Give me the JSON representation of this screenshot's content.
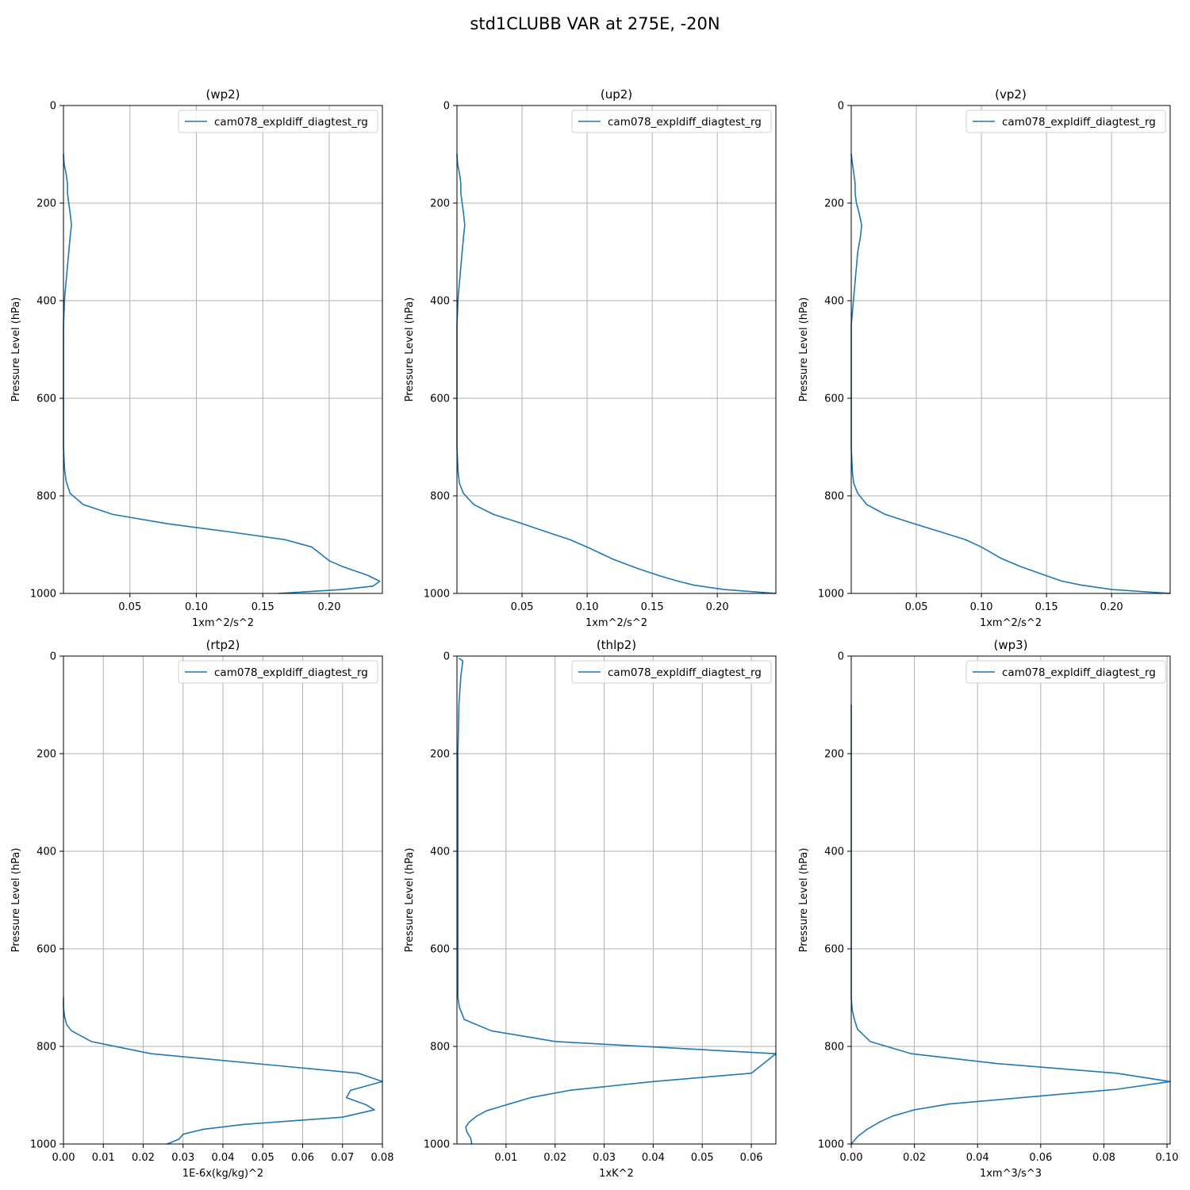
{
  "figure": {
    "title": "std1CLUBB VAR at 275E, -20N"
  },
  "colors": {
    "series": "#1f77b4",
    "grid": "#b0b0b0"
  },
  "chart_data": [
    {
      "type": "line",
      "title": "(wp2)",
      "xlabel": "1xm^2/s^2",
      "ylabel": "Pressure Level (hPa)",
      "xlim": [
        0,
        0.24
      ],
      "ylim": [
        1000,
        0
      ],
      "xticks": [
        "0.05",
        "0.10",
        "0.15",
        "0.20"
      ],
      "xtick_values": [
        0.05,
        0.1,
        0.15,
        0.2
      ],
      "yticks": [
        "0",
        "200",
        "400",
        "600",
        "800",
        "1000"
      ],
      "ytick_values": [
        0,
        200,
        400,
        600,
        800,
        1000
      ],
      "grid": true,
      "legend_position": "top-right",
      "series": [
        {
          "name": "cam078_expldiff_diagtest_rg",
          "x": [
            0.0,
            0.0005,
            0.002,
            0.003,
            0.003,
            0.004,
            0.005,
            0.006,
            0.005,
            0.004,
            0.003,
            0.002,
            0.001,
            0.0005,
            0.0,
            0.0,
            0.0,
            0.0,
            0.0005,
            0.001,
            0.002,
            0.005,
            0.015,
            0.037,
            0.078,
            0.128,
            0.167,
            0.187,
            0.2,
            0.21,
            0.229,
            0.238,
            0.233,
            0.21,
            0.162
          ],
          "y": [
            100,
            120,
            140,
            160,
            180,
            200,
            220,
            245,
            270,
            300,
            330,
            360,
            390,
            420,
            450,
            550,
            650,
            700,
            730,
            750,
            770,
            795,
            818,
            838,
            857,
            875,
            890,
            905,
            933,
            945,
            963,
            975,
            985,
            992,
            1000
          ]
        }
      ]
    },
    {
      "type": "line",
      "title": "(up2)",
      "xlabel": "1xm^2/s^2",
      "ylabel": "Pressure Level (hPa)",
      "xlim": [
        0,
        0.245
      ],
      "ylim": [
        1000,
        0
      ],
      "xticks": [
        "0.05",
        "0.10",
        "0.15",
        "0.20"
      ],
      "xtick_values": [
        0.05,
        0.1,
        0.15,
        0.2
      ],
      "yticks": [
        "0",
        "200",
        "400",
        "600",
        "800",
        "1000"
      ],
      "ytick_values": [
        0,
        200,
        400,
        600,
        800,
        1000
      ],
      "grid": true,
      "legend_position": "top-right",
      "series": [
        {
          "name": "cam078_expldiff_diagtest_rg",
          "x": [
            0.0,
            0.0005,
            0.002,
            0.003,
            0.003,
            0.004,
            0.005,
            0.006,
            0.005,
            0.004,
            0.003,
            0.002,
            0.001,
            0.0005,
            0.0,
            0.0,
            0.0,
            0.0005,
            0.001,
            0.002,
            0.005,
            0.013,
            0.028,
            0.048,
            0.07,
            0.087,
            0.1,
            0.12,
            0.14,
            0.157,
            0.17,
            0.182,
            0.205,
            0.245
          ],
          "y": [
            100,
            120,
            140,
            160,
            180,
            200,
            220,
            245,
            270,
            300,
            330,
            360,
            390,
            420,
            450,
            600,
            700,
            730,
            755,
            775,
            795,
            818,
            838,
            855,
            875,
            890,
            905,
            930,
            950,
            965,
            975,
            983,
            992,
            1000
          ]
        }
      ]
    },
    {
      "type": "line",
      "title": "(vp2)",
      "xlabel": "1xm^2/s^2",
      "ylabel": "Pressure Level (hPa)",
      "xlim": [
        0,
        0.245
      ],
      "ylim": [
        1000,
        0
      ],
      "xticks": [
        "0.05",
        "0.10",
        "0.15",
        "0.20"
      ],
      "xtick_values": [
        0.05,
        0.1,
        0.15,
        0.2
      ],
      "yticks": [
        "0",
        "200",
        "400",
        "600",
        "800",
        "1000"
      ],
      "ytick_values": [
        0,
        200,
        400,
        600,
        800,
        1000
      ],
      "grid": true,
      "legend_position": "top-right",
      "series": [
        {
          "name": "cam078_expldiff_diagtest_rg",
          "x": [
            0.0,
            0.001,
            0.002,
            0.003,
            0.003,
            0.004,
            0.006,
            0.008,
            0.007,
            0.005,
            0.004,
            0.003,
            0.002,
            0.001,
            0.0,
            0.0,
            0.0,
            0.0005,
            0.001,
            0.002,
            0.005,
            0.012,
            0.026,
            0.048,
            0.07,
            0.088,
            0.1,
            0.115,
            0.13,
            0.148,
            0.162,
            0.177,
            0.2,
            0.245
          ],
          "y": [
            100,
            120,
            140,
            160,
            180,
            200,
            220,
            245,
            270,
            300,
            330,
            360,
            390,
            420,
            450,
            600,
            700,
            730,
            755,
            775,
            795,
            818,
            838,
            857,
            875,
            890,
            905,
            928,
            945,
            962,
            975,
            983,
            992,
            1000
          ]
        }
      ]
    },
    {
      "type": "line",
      "title": "(rtp2)",
      "xlabel": "1E-6x(kg/kg)^2",
      "ylabel": "Pressure Level (hPa)",
      "xlim": [
        0,
        0.08
      ],
      "ylim": [
        1000,
        0
      ],
      "xticks": [
        "0.00",
        "0.01",
        "0.02",
        "0.03",
        "0.04",
        "0.05",
        "0.06",
        "0.07",
        "0.08"
      ],
      "xtick_values": [
        0.0,
        0.01,
        0.02,
        0.03,
        0.04,
        0.05,
        0.06,
        0.07,
        0.08
      ],
      "yticks": [
        "0",
        "200",
        "400",
        "600",
        "800",
        "1000"
      ],
      "ytick_values": [
        0,
        200,
        400,
        600,
        800,
        1000
      ],
      "grid": true,
      "legend_position": "top-right",
      "series": [
        {
          "name": "cam078_expldiff_diagtest_rg",
          "x": [
            0.0,
            0.0,
            0.0003,
            0.0008,
            0.002,
            0.007,
            0.022,
            0.074,
            0.08,
            0.072,
            0.071,
            0.076,
            0.078,
            0.07,
            0.045,
            0.035,
            0.03,
            0.029,
            0.026
          ],
          "y": [
            700,
            720,
            740,
            755,
            768,
            790,
            815,
            855,
            872,
            890,
            905,
            920,
            930,
            945,
            960,
            970,
            980,
            990,
            1000
          ]
        }
      ]
    },
    {
      "type": "line",
      "title": "(thlp2)",
      "xlabel": "1xK^2",
      "ylabel": "Pressure Level (hPa)",
      "xlim": [
        0,
        0.065
      ],
      "ylim": [
        1000,
        0
      ],
      "xticks": [
        "0.01",
        "0.02",
        "0.03",
        "0.04",
        "0.05",
        "0.06"
      ],
      "xtick_values": [
        0.01,
        0.02,
        0.03,
        0.04,
        0.05,
        0.06
      ],
      "yticks": [
        "0",
        "200",
        "400",
        "600",
        "800",
        "1000"
      ],
      "ytick_values": [
        0,
        200,
        400,
        600,
        800,
        1000
      ],
      "grid": true,
      "legend_position": "top-right",
      "series": [
        {
          "name": "cam078_expldiff_diagtest_rg",
          "x": [
            0.0005,
            0.0012,
            0.0008,
            0.0004,
            0.0003,
            0.0002,
            0.0002,
            0.0002,
            0.0002,
            0.0002,
            0.0002,
            0.0005,
            0.0015,
            0.007,
            0.02,
            0.065,
            0.06,
            0.04,
            0.023,
            0.015,
            0.01,
            0.006,
            0.004,
            0.0025,
            0.0018,
            0.002,
            0.0028,
            0.003
          ],
          "y": [
            5,
            10,
            40,
            100,
            150,
            200,
            300,
            400,
            500,
            600,
            700,
            720,
            745,
            768,
            790,
            815,
            855,
            872,
            890,
            905,
            920,
            932,
            943,
            955,
            965,
            975,
            988,
            1000
          ]
        }
      ]
    },
    {
      "type": "line",
      "title": "(wp3)",
      "xlabel": "1xm^3/s^3",
      "ylabel": "Pressure Level (hPa)",
      "xlim": [
        0,
        0.101
      ],
      "ylim": [
        1000,
        0
      ],
      "xticks": [
        "0.00",
        "0.02",
        "0.04",
        "0.06",
        "0.08",
        "0.10"
      ],
      "xtick_values": [
        0.0,
        0.02,
        0.04,
        0.06,
        0.08,
        0.1
      ],
      "yticks": [
        "0",
        "200",
        "400",
        "600",
        "800",
        "1000"
      ],
      "ytick_values": [
        0,
        200,
        400,
        600,
        800,
        1000
      ],
      "grid": true,
      "legend_position": "top-right",
      "series": [
        {
          "name": "cam078_expldiff_diagtest_rg",
          "x": [
            0.0,
            0.0,
            0.0003,
            0.001,
            0.002,
            0.006,
            0.019,
            0.046,
            0.084,
            0.101,
            0.084,
            0.054,
            0.031,
            0.02,
            0.013,
            0.009,
            0.005,
            0.002,
            0.0
          ],
          "y": [
            100,
            700,
            725,
            745,
            765,
            790,
            815,
            835,
            855,
            872,
            888,
            905,
            918,
            930,
            943,
            955,
            970,
            985,
            1000
          ]
        }
      ]
    }
  ]
}
